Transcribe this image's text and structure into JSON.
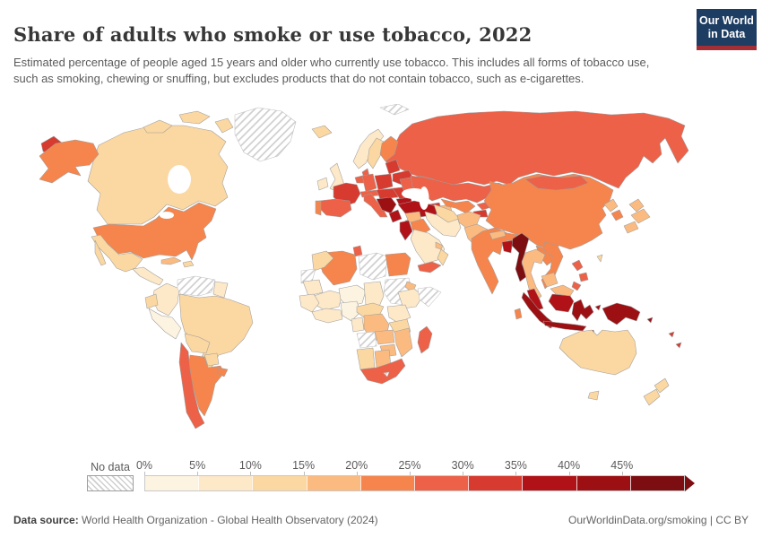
{
  "header": {
    "title": "Share of adults who smoke or use tobacco, 2022",
    "subtitle": "Estimated percentage of people aged 15 years and older who currently use tobacco. This includes all forms of tobacco use, such as smoking, chewing or snuffing, but excludes products that do not contain tobacco, such as e-cigarettes."
  },
  "logo": {
    "line1": "Our World",
    "line2": "in Data",
    "bg_color": "#1d3d63",
    "accent_color": "#a22f36"
  },
  "footer": {
    "source_label": "Data source:",
    "source_text": " World Health Organization - Global Health Observatory (2024)",
    "right_text": "OurWorldinData.org/smoking | CC BY"
  },
  "chart_data": {
    "type": "heatmap",
    "subtype": "world-choropleth",
    "title": "Share of adults who smoke or use tobacco, 2022",
    "unit": "% of adults (15+) using tobacco",
    "legend": {
      "no_data_label": "No data",
      "tick_labels": [
        "0%",
        "5%",
        "10%",
        "15%",
        "20%",
        "25%",
        "30%",
        "35%",
        "40%",
        "45%"
      ],
      "colors": [
        "#fdf3e1",
        "#fde8c8",
        "#fbd7a1",
        "#fbbb80",
        "#f5854c",
        "#ec6148",
        "#d73a2e",
        "#b01217",
        "#9c1013",
        "#7c0d10"
      ],
      "bin_ranges": [
        "0-5%",
        "5-10%",
        "10-15%",
        "15-20%",
        "20-25%",
        "25-30%",
        "30-35%",
        "35-40%",
        "40-45%",
        "45%+"
      ],
      "no_data_pattern": "diagonal-hatch"
    },
    "regions": {
      "canada": {
        "name": "Canada",
        "bin": 2
      },
      "canada-arctic": {
        "name": "Canada (Arctic islands)",
        "bin": 2
      },
      "alaska": {
        "name": "United States (Alaska)",
        "bin": 4
      },
      "chukotka-west": {
        "name": "Russia (Chukotka)",
        "bin": 6
      },
      "greenland": {
        "name": "Greenland",
        "bin": "no_data"
      },
      "usa": {
        "name": "United States",
        "bin": 4
      },
      "mexico": {
        "name": "Mexico",
        "bin": 2
      },
      "central-america": {
        "name": "Central America",
        "bin": 1
      },
      "cuba": {
        "name": "Cuba",
        "bin": 3
      },
      "hispaniola": {
        "name": "Dominican Republic",
        "bin": 2
      },
      "colombia": {
        "name": "Colombia",
        "bin": 1
      },
      "venezuela": {
        "name": "Venezuela",
        "bin": "no_data"
      },
      "guyana": {
        "name": "Guyana / Suriname",
        "bin": 1
      },
      "ecuador": {
        "name": "Ecuador",
        "bin": 2
      },
      "peru": {
        "name": "Peru",
        "bin": 0
      },
      "brazil": {
        "name": "Brazil",
        "bin": 2
      },
      "bolivia": {
        "name": "Bolivia",
        "bin": 2
      },
      "paraguay": {
        "name": "Paraguay",
        "bin": 2
      },
      "chile": {
        "name": "Chile",
        "bin": 5
      },
      "argentina": {
        "name": "Argentina",
        "bin": 4
      },
      "uruguay": {
        "name": "Uruguay",
        "bin": 4
      },
      "iceland": {
        "name": "Iceland",
        "bin": 2
      },
      "ireland": {
        "name": "Ireland",
        "bin": 1
      },
      "uk": {
        "name": "United Kingdom",
        "bin": 1
      },
      "norway": {
        "name": "Norway",
        "bin": 1
      },
      "sweden": {
        "name": "Sweden",
        "bin": 2
      },
      "finland": {
        "name": "Finland",
        "bin": 4
      },
      "denmark": {
        "name": "Denmark",
        "bin": 5
      },
      "baltics": {
        "name": "Baltic states",
        "bin": 6
      },
      "belarus": {
        "name": "Belarus",
        "bin": 6
      },
      "poland": {
        "name": "Poland",
        "bin": 6
      },
      "germany": {
        "name": "Germany",
        "bin": 5
      },
      "benelux": {
        "name": "Benelux",
        "bin": 5
      },
      "france": {
        "name": "France",
        "bin": 6
      },
      "spain": {
        "name": "Spain",
        "bin": 5
      },
      "portugal": {
        "name": "Portugal",
        "bin": 4
      },
      "italy": {
        "name": "Italy",
        "bin": 5
      },
      "alpine": {
        "name": "Switzerland / Austria",
        "bin": 5
      },
      "central-europe": {
        "name": "Czechia / Slovakia / Hungary",
        "bin": 6
      },
      "balkans": {
        "name": "Serbia / Bosnia / Croatia",
        "bin": 8
      },
      "greece": {
        "name": "Greece",
        "bin": 7
      },
      "romania": {
        "name": "Romania",
        "bin": 6
      },
      "bulgaria": {
        "name": "Bulgaria",
        "bin": 7
      },
      "ukraine": {
        "name": "Ukraine",
        "bin": 5
      },
      "russia": {
        "name": "Russia",
        "bin": 5
      },
      "svalbard": {
        "name": "Svalbard",
        "bin": "no_data"
      },
      "kazakhstan": {
        "name": "Kazakhstan",
        "bin": 5
      },
      "uzbekistan": {
        "name": "Uzbekistan",
        "bin": 4
      },
      "turkmenistan": {
        "name": "Turkmenistan",
        "bin": 2
      },
      "kyrgyzstan": {
        "name": "Kyrgyzstan",
        "bin": 5
      },
      "tajikistan": {
        "name": "Tajikistan",
        "bin": 6
      },
      "georgia": {
        "name": "Georgia",
        "bin": 6
      },
      "azerbaijan": {
        "name": "Azerbaijan",
        "bin": 3
      },
      "turkey": {
        "name": "Turkey",
        "bin": 7
      },
      "cyprus": {
        "name": "Cyprus",
        "bin": 7
      },
      "syria": {
        "name": "Syria",
        "bin": 3
      },
      "levant": {
        "name": "Jordan / Israel / Lebanon",
        "bin": 7
      },
      "iraq": {
        "name": "Iraq",
        "bin": 4
      },
      "saudi-arabia": {
        "name": "Saudi Arabia",
        "bin": 1
      },
      "yemen": {
        "name": "Yemen",
        "bin": 5
      },
      "oman": {
        "name": "Oman",
        "bin": 2
      },
      "gulf-states": {
        "name": "Gulf states",
        "bin": 3
      },
      "iran": {
        "name": "Iran",
        "bin": 1
      },
      "afghanistan": {
        "name": "Afghanistan",
        "bin": 3
      },
      "pakistan": {
        "name": "Pakistan",
        "bin": 3
      },
      "india": {
        "name": "India",
        "bin": 4
      },
      "nepal": {
        "name": "Nepal",
        "bin": 3
      },
      "bangladesh": {
        "name": "Bangladesh",
        "bin": 7
      },
      "sri-lanka": {
        "name": "Sri Lanka",
        "bin": 4
      },
      "china": {
        "name": "China",
        "bin": 4
      },
      "mongolia": {
        "name": "Mongolia",
        "bin": 5
      },
      "north-korea": {
        "name": "North Korea",
        "bin": 3
      },
      "south-korea": {
        "name": "South Korea",
        "bin": 4
      },
      "japan": {
        "name": "Japan",
        "bin": 3
      },
      "taiwan": {
        "name": "Taiwan",
        "bin": 2
      },
      "myanmar": {
        "name": "Myanmar",
        "bin": 9
      },
      "thailand": {
        "name": "Thailand",
        "bin": 3
      },
      "laos": {
        "name": "Laos",
        "bin": 4
      },
      "vietnam": {
        "name": "Vietnam",
        "bin": 4
      },
      "cambodia": {
        "name": "Cambodia",
        "bin": 3
      },
      "malaysia": {
        "name": "Malaysia (peninsula)",
        "bin": 7
      },
      "malaysia-borneo": {
        "name": "Malaysia (Borneo)",
        "bin": 3
      },
      "indonesia-kalimantan": {
        "name": "Indonesia (Kalimantan)",
        "bin": 7
      },
      "indonesia": {
        "name": "Indonesia",
        "bin": 8
      },
      "philippines": {
        "name": "Philippines",
        "bin": 5
      },
      "new-guinea": {
        "name": "Papua New Guinea",
        "bin": 8
      },
      "solomon-islands": {
        "name": "Solomon Islands",
        "bin": 8
      },
      "vanuatu-fiji": {
        "name": "Vanuatu / Fiji",
        "bin": 6
      },
      "timor": {
        "name": "Timor-Leste",
        "bin": 8
      },
      "australia": {
        "name": "Australia",
        "bin": 2
      },
      "new-zealand": {
        "name": "New Zealand",
        "bin": 2
      },
      "morocco": {
        "name": "Morocco",
        "bin": 2
      },
      "western-sahara": {
        "name": "Western Sahara",
        "bin": "no_data"
      },
      "algeria": {
        "name": "Algeria",
        "bin": 4
      },
      "tunisia": {
        "name": "Tunisia",
        "bin": 5
      },
      "libya": {
        "name": "Libya",
        "bin": "no_data"
      },
      "egypt": {
        "name": "Egypt",
        "bin": 4
      },
      "mauritania": {
        "name": "Mauritania",
        "bin": 1
      },
      "mali": {
        "name": "Mali",
        "bin": 1
      },
      "niger": {
        "name": "Niger",
        "bin": 0
      },
      "chad": {
        "name": "Chad",
        "bin": 1
      },
      "sudan": {
        "name": "Sudan",
        "bin": "no_data"
      },
      "eritrea": {
        "name": "Eritrea",
        "bin": 3
      },
      "ethiopia": {
        "name": "Ethiopia",
        "bin": 1
      },
      "somalia": {
        "name": "Somalia",
        "bin": "no_data"
      },
      "west-africa": {
        "name": "Senegal / Guinea",
        "bin": 1
      },
      "guinea-coast": {
        "name": "Ghana / Ivory Coast",
        "bin": 1
      },
      "nigeria": {
        "name": "Nigeria",
        "bin": 0
      },
      "cameroon-car": {
        "name": "Cameroon / CAR",
        "bin": 2
      },
      "gabon-congo": {
        "name": "Gabon / Congo",
        "bin": 1
      },
      "drc": {
        "name": "DR Congo",
        "bin": 3
      },
      "uganda-kenya": {
        "name": "Uganda / Kenya",
        "bin": 1
      },
      "tanzania": {
        "name": "Tanzania",
        "bin": 2
      },
      "angola": {
        "name": "Angola",
        "bin": "no_data"
      },
      "zambia": {
        "name": "Zambia",
        "bin": 3
      },
      "mozambique": {
        "name": "Mozambique / Malawi",
        "bin": 3
      },
      "zimbabwe": {
        "name": "Zimbabwe",
        "bin": 3
      },
      "namibia": {
        "name": "Namibia",
        "bin": 2
      },
      "botswana": {
        "name": "Botswana",
        "bin": 3
      },
      "south-africa": {
        "name": "South Africa",
        "bin": 5
      },
      "lesotho": {
        "name": "Lesotho",
        "bin": "no_data"
      },
      "madagascar": {
        "name": "Madagascar",
        "bin": 5
      }
    }
  }
}
